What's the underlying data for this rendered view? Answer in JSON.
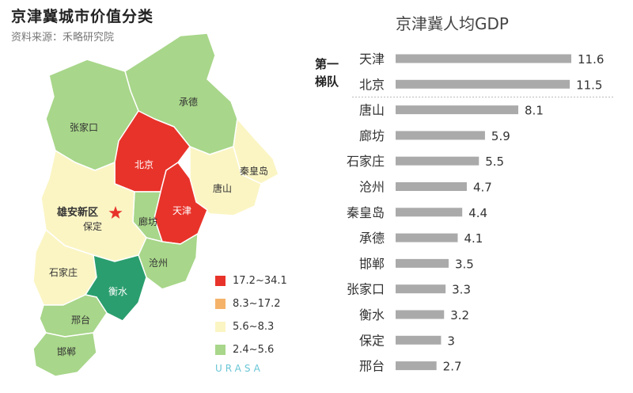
{
  "map": {
    "title": "京津冀城市价值分类",
    "source": "资料来源：禾略研究院",
    "brand": "URASA",
    "legend": [
      {
        "label": "17.2~34.1",
        "color": "#e8332a"
      },
      {
        "label": "8.3~17.2",
        "color": "#f5b36a"
      },
      {
        "label": "5.6~8.3",
        "color": "#fbf5c4"
      },
      {
        "label": "2.4~5.6",
        "color": "#a8d68a"
      }
    ],
    "regions": [
      {
        "name": "承德",
        "class": "2.4~5.6"
      },
      {
        "name": "张家口",
        "class": "2.4~5.6"
      },
      {
        "name": "北京",
        "class": "17.2~34.1"
      },
      {
        "name": "秦皇岛",
        "class": "5.6~8.3"
      },
      {
        "name": "唐山",
        "class": "5.6~8.3"
      },
      {
        "name": "天津",
        "class": "17.2~34.1"
      },
      {
        "name": "廊坊",
        "class": "2.4~5.6"
      },
      {
        "name": "保定",
        "class": "5.6~8.3"
      },
      {
        "name": "石家庄",
        "class": "5.6~8.3"
      },
      {
        "name": "沧州",
        "class": "2.4~5.6"
      },
      {
        "name": "衡水",
        "class": "special"
      },
      {
        "name": "邢台",
        "class": "2.4~5.6"
      },
      {
        "name": "邯郸",
        "class": "2.4~5.6"
      }
    ],
    "marker_label": "雄安新区",
    "special_color": "#2a9e6e"
  },
  "chart_data": {
    "type": "bar",
    "title": "京津冀人均GDP",
    "orientation": "horizontal",
    "categories": [
      "天津",
      "北京",
      "唐山",
      "廊坊",
      "石家庄",
      "沧州",
      "秦皇岛",
      "承德",
      "邯郸",
      "张家口",
      "衡水",
      "保定",
      "邢台"
    ],
    "values": [
      11.6,
      11.5,
      8.1,
      5.9,
      5.5,
      4.7,
      4.4,
      4.1,
      3.5,
      3.3,
      3.2,
      3.0,
      2.7
    ],
    "tier_label": [
      "第一",
      "梯队"
    ],
    "tier_size": 2,
    "bar_color": "#aaaaaa",
    "xlim": [
      0,
      11.6
    ]
  }
}
